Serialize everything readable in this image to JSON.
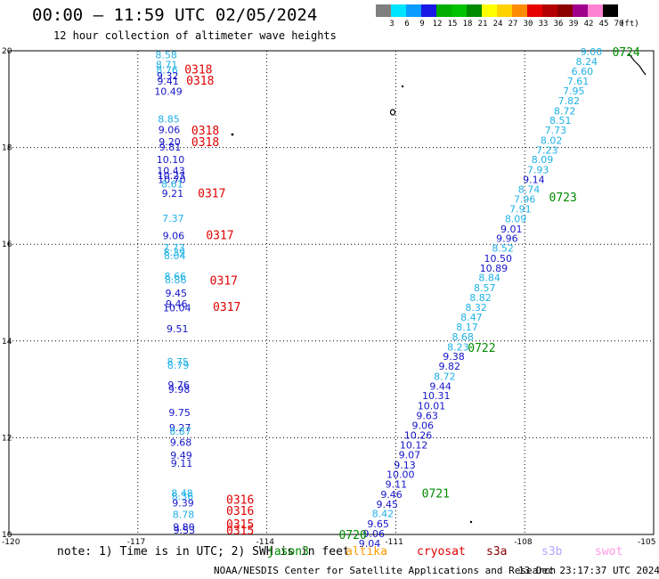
{
  "header": {
    "title": "00:00 – 11:59 UTC 02/05/2024",
    "subtitle": "12 hour collection of altimeter wave heights"
  },
  "legend": {
    "unit": "(ft)",
    "bins": [
      {
        "label": "3",
        "color": "#7f7f7f"
      },
      {
        "label": "6",
        "color": "#00e5ff"
      },
      {
        "label": "9",
        "color": "#0a9cff"
      },
      {
        "label": "12",
        "color": "#1919e6"
      },
      {
        "label": "15",
        "color": "#00ad00"
      },
      {
        "label": "18",
        "color": "#00c200"
      },
      {
        "label": "21",
        "color": "#008a00"
      },
      {
        "label": "24",
        "color": "#ffff00"
      },
      {
        "label": "27",
        "color": "#ffd200"
      },
      {
        "label": "30",
        "color": "#ff8c00"
      },
      {
        "label": "33",
        "color": "#e60000"
      },
      {
        "label": "36",
        "color": "#b40000"
      },
      {
        "label": "39",
        "color": "#8c0000"
      },
      {
        "label": "42",
        "color": "#a0008c"
      },
      {
        "label": "45",
        "color": "#ff82d2"
      },
      {
        "label": "70",
        "color": "#000000"
      }
    ]
  },
  "map": {
    "lon_range": [
      -120,
      -105
    ],
    "lat_range": [
      10,
      20
    ],
    "lon_labels": [
      "-120",
      "-117",
      "-114",
      "-111",
      "-108",
      "-105"
    ],
    "lat_labels": [
      "10",
      "12",
      "14",
      "16",
      "18",
      "20"
    ],
    "colors": {
      "cyan": "#1fb1e6",
      "blue": "#1414c8",
      "red": "#e00000",
      "green": "#008c00"
    },
    "tracks": [
      {
        "name": "0724-0720",
        "points": [
          {
            "lon": -106.45,
            "lat": 19.98,
            "v": "9.00",
            "c": "cyan"
          },
          {
            "lon": -106.56,
            "lat": 19.78,
            "v": "8.24",
            "c": "cyan"
          },
          {
            "lon": -106.66,
            "lat": 19.58,
            "v": "6.60",
            "c": "cyan"
          },
          {
            "lon": -106.76,
            "lat": 19.37,
            "v": "7.61",
            "c": "cyan"
          },
          {
            "lon": -106.86,
            "lat": 19.17,
            "v": "7.95",
            "c": "cyan"
          },
          {
            "lon": -106.97,
            "lat": 18.97,
            "v": "7.82",
            "c": "cyan"
          },
          {
            "lon": -107.07,
            "lat": 18.76,
            "v": "8.72",
            "c": "cyan"
          },
          {
            "lon": -107.17,
            "lat": 18.56,
            "v": "8.51",
            "c": "cyan"
          },
          {
            "lon": -107.28,
            "lat": 18.36,
            "v": "7.73",
            "c": "cyan"
          },
          {
            "lon": -107.38,
            "lat": 18.15,
            "v": "8.02",
            "c": "cyan"
          },
          {
            "lon": -107.48,
            "lat": 17.95,
            "v": "7.23",
            "c": "cyan"
          },
          {
            "lon": -107.59,
            "lat": 17.75,
            "v": "8.09",
            "c": "cyan"
          },
          {
            "lon": -107.69,
            "lat": 17.54,
            "v": "7.93",
            "c": "cyan"
          },
          {
            "lon": -107.79,
            "lat": 17.34,
            "v": "9.14",
            "c": "blue"
          },
          {
            "lon": -107.9,
            "lat": 17.14,
            "v": "8.74",
            "c": "cyan"
          },
          {
            "lon": -108.0,
            "lat": 16.93,
            "v": "7.96",
            "c": "cyan"
          },
          {
            "lon": -108.1,
            "lat": 16.73,
            "v": "7.91",
            "c": "cyan"
          },
          {
            "lon": -108.21,
            "lat": 16.53,
            "v": "8.09",
            "c": "cyan"
          },
          {
            "lon": -108.31,
            "lat": 16.32,
            "v": "9.01",
            "c": "blue"
          },
          {
            "lon": -108.41,
            "lat": 16.12,
            "v": "9.96",
            "c": "blue"
          },
          {
            "lon": -108.51,
            "lat": 15.92,
            "v": "8.52",
            "c": "cyan"
          },
          {
            "lon": -108.62,
            "lat": 15.71,
            "v": "10.50",
            "c": "blue"
          },
          {
            "lon": -108.72,
            "lat": 15.51,
            "v": "10.89",
            "c": "blue"
          },
          {
            "lon": -108.82,
            "lat": 15.31,
            "v": "8.84",
            "c": "cyan"
          },
          {
            "lon": -108.93,
            "lat": 15.1,
            "v": "8.57",
            "c": "cyan"
          },
          {
            "lon": -109.03,
            "lat": 14.9,
            "v": "8.82",
            "c": "cyan"
          },
          {
            "lon": -109.13,
            "lat": 14.7,
            "v": "8.32",
            "c": "cyan"
          },
          {
            "lon": -109.24,
            "lat": 14.49,
            "v": "8.47",
            "c": "cyan"
          },
          {
            "lon": -109.34,
            "lat": 14.29,
            "v": "8.17",
            "c": "cyan"
          },
          {
            "lon": -109.44,
            "lat": 14.09,
            "v": "8.68",
            "c": "cyan"
          },
          {
            "lon": -109.55,
            "lat": 13.88,
            "v": "8.23",
            "c": "cyan"
          },
          {
            "lon": -109.65,
            "lat": 13.68,
            "v": "9.38",
            "c": "blue"
          },
          {
            "lon": -109.75,
            "lat": 13.48,
            "v": "9.82",
            "c": "blue"
          },
          {
            "lon": -109.86,
            "lat": 13.27,
            "v": "8.72",
            "c": "cyan"
          },
          {
            "lon": -109.96,
            "lat": 13.07,
            "v": "9.44",
            "c": "blue"
          },
          {
            "lon": -110.06,
            "lat": 12.87,
            "v": "10.31",
            "c": "blue"
          },
          {
            "lon": -110.17,
            "lat": 12.66,
            "v": "10.01",
            "c": "blue"
          },
          {
            "lon": -110.27,
            "lat": 12.46,
            "v": "9.63",
            "c": "blue"
          },
          {
            "lon": -110.37,
            "lat": 12.26,
            "v": "9.06",
            "c": "blue"
          },
          {
            "lon": -110.48,
            "lat": 12.05,
            "v": "10.26",
            "c": "blue"
          },
          {
            "lon": -110.58,
            "lat": 11.85,
            "v": "10.12",
            "c": "blue"
          },
          {
            "lon": -110.68,
            "lat": 11.65,
            "v": "9.07",
            "c": "blue"
          },
          {
            "lon": -110.79,
            "lat": 11.44,
            "v": "9.13",
            "c": "blue"
          },
          {
            "lon": -110.89,
            "lat": 11.24,
            "v": "10.00",
            "c": "blue"
          },
          {
            "lon": -110.99,
            "lat": 11.04,
            "v": "9.11",
            "c": "blue"
          },
          {
            "lon": -111.1,
            "lat": 10.83,
            "v": "9.46",
            "c": "blue"
          },
          {
            "lon": -111.2,
            "lat": 10.63,
            "v": "9.45",
            "c": "blue"
          },
          {
            "lon": -111.3,
            "lat": 10.43,
            "v": "8.42",
            "c": "cyan"
          },
          {
            "lon": -111.41,
            "lat": 10.22,
            "v": "9.65",
            "c": "blue"
          },
          {
            "lon": -111.51,
            "lat": 10.02,
            "v": "9.06",
            "c": "blue"
          },
          {
            "lon": -111.61,
            "lat": 9.82,
            "v": "9.04",
            "c": "blue"
          }
        ]
      },
      {
        "name": "0318-0315",
        "points": [
          {
            "lon": -116.34,
            "lat": 19.92,
            "v": "8.58",
            "c": "cyan"
          },
          {
            "lon": -116.33,
            "lat": 19.71,
            "v": "8.71",
            "c": "cyan"
          },
          {
            "lon": -116.32,
            "lat": 19.6,
            "v": "8.76",
            "c": "cyan"
          },
          {
            "lon": -116.31,
            "lat": 19.48,
            "v": "9.32",
            "c": "blue"
          },
          {
            "lon": -116.3,
            "lat": 19.37,
            "v": "9.41",
            "c": "blue"
          },
          {
            "lon": -116.29,
            "lat": 19.16,
            "v": "10.49",
            "c": "blue"
          },
          {
            "lon": -116.28,
            "lat": 18.59,
            "v": "8.85",
            "c": "cyan"
          },
          {
            "lon": -116.27,
            "lat": 18.37,
            "v": "9.06",
            "c": "blue"
          },
          {
            "lon": -116.26,
            "lat": 18.12,
            "v": "9.20",
            "c": "blue"
          },
          {
            "lon": -116.25,
            "lat": 18.01,
            "v": "9.81",
            "c": "blue"
          },
          {
            "lon": -116.24,
            "lat": 17.75,
            "v": "10.10",
            "c": "blue"
          },
          {
            "lon": -116.23,
            "lat": 17.52,
            "v": "10.43",
            "c": "blue"
          },
          {
            "lon": -116.22,
            "lat": 17.42,
            "v": "10.23",
            "c": "blue"
          },
          {
            "lon": -116.21,
            "lat": 17.34,
            "v": "10.70",
            "c": "blue"
          },
          {
            "lon": -116.2,
            "lat": 17.25,
            "v": "8.61",
            "c": "cyan"
          },
          {
            "lon": -116.19,
            "lat": 17.05,
            "v": "9.21",
            "c": "blue"
          },
          {
            "lon": -116.18,
            "lat": 16.54,
            "v": "7.37",
            "c": "cyan"
          },
          {
            "lon": -116.17,
            "lat": 16.18,
            "v": "9.06",
            "c": "blue"
          },
          {
            "lon": -116.16,
            "lat": 15.93,
            "v": "7.73",
            "c": "cyan"
          },
          {
            "lon": -116.15,
            "lat": 15.84,
            "v": "8.39",
            "c": "cyan"
          },
          {
            "lon": -116.14,
            "lat": 15.76,
            "v": "8.04",
            "c": "cyan"
          },
          {
            "lon": -116.13,
            "lat": 15.34,
            "v": "8.66",
            "c": "cyan"
          },
          {
            "lon": -116.12,
            "lat": 15.27,
            "v": "8.86",
            "c": "cyan"
          },
          {
            "lon": -116.11,
            "lat": 14.99,
            "v": "9.45",
            "c": "blue"
          },
          {
            "lon": -116.1,
            "lat": 14.77,
            "v": "9.46",
            "c": "blue"
          },
          {
            "lon": -116.09,
            "lat": 14.69,
            "v": "10.04",
            "c": "blue"
          },
          {
            "lon": -116.08,
            "lat": 14.25,
            "v": "9.51",
            "c": "blue"
          },
          {
            "lon": -116.07,
            "lat": 13.57,
            "v": "8.75",
            "c": "cyan"
          },
          {
            "lon": -116.06,
            "lat": 13.5,
            "v": "8.79",
            "c": "cyan"
          },
          {
            "lon": -116.05,
            "lat": 13.09,
            "v": "9.76",
            "c": "blue"
          },
          {
            "lon": -116.04,
            "lat": 13.0,
            "v": "9.98",
            "c": "blue"
          },
          {
            "lon": -116.03,
            "lat": 12.52,
            "v": "9.75",
            "c": "blue"
          },
          {
            "lon": -116.02,
            "lat": 12.21,
            "v": "9.27",
            "c": "blue"
          },
          {
            "lon": -116.01,
            "lat": 12.14,
            "v": "8.87",
            "c": "cyan"
          },
          {
            "lon": -116.0,
            "lat": 11.91,
            "v": "9.68",
            "c": "blue"
          },
          {
            "lon": -115.99,
            "lat": 11.64,
            "v": "9.49",
            "c": "blue"
          },
          {
            "lon": -115.98,
            "lat": 11.47,
            "v": "9.11",
            "c": "blue"
          },
          {
            "lon": -115.97,
            "lat": 10.86,
            "v": "8.48",
            "c": "cyan"
          },
          {
            "lon": -115.96,
            "lat": 10.79,
            "v": "8.36",
            "c": "cyan"
          },
          {
            "lon": -115.95,
            "lat": 10.65,
            "v": "9.39",
            "c": "blue"
          },
          {
            "lon": -115.94,
            "lat": 10.41,
            "v": "8.78",
            "c": "cyan"
          },
          {
            "lon": -115.93,
            "lat": 10.16,
            "v": "9.80",
            "c": "blue"
          },
          {
            "lon": -115.92,
            "lat": 10.09,
            "v": "9.53",
            "c": "blue"
          }
        ]
      }
    ],
    "pass_labels": [
      {
        "text": "0724",
        "lon": -105.64,
        "lat": 19.98,
        "c": "green"
      },
      {
        "text": "0723",
        "lon": -107.11,
        "lat": 16.98,
        "c": "green"
      },
      {
        "text": "0722",
        "lon": -109.0,
        "lat": 13.87,
        "c": "green"
      },
      {
        "text": "0721",
        "lon": -110.07,
        "lat": 10.86,
        "c": "green"
      },
      {
        "text": "0720",
        "lon": -112.0,
        "lat": 10.0,
        "c": "green"
      },
      {
        "text": "0318",
        "lon": -115.59,
        "lat": 19.62,
        "c": "red"
      },
      {
        "text": "0318",
        "lon": -115.55,
        "lat": 19.39,
        "c": "red"
      },
      {
        "text": "0318",
        "lon": -115.43,
        "lat": 18.36,
        "c": "red"
      },
      {
        "text": "0318",
        "lon": -115.43,
        "lat": 18.12,
        "c": "red"
      },
      {
        "text": "0317",
        "lon": -115.28,
        "lat": 17.06,
        "c": "red"
      },
      {
        "text": "0317",
        "lon": -115.09,
        "lat": 16.2,
        "c": "red"
      },
      {
        "text": "0317",
        "lon": -115.0,
        "lat": 15.26,
        "c": "red"
      },
      {
        "text": "0317",
        "lon": -114.93,
        "lat": 14.71,
        "c": "red"
      },
      {
        "text": "0316",
        "lon": -114.62,
        "lat": 10.73,
        "c": "red"
      },
      {
        "text": "0316",
        "lon": -114.62,
        "lat": 10.5,
        "c": "red"
      },
      {
        "text": "0315",
        "lon": -114.62,
        "lat": 10.22,
        "c": "red"
      },
      {
        "text": "0315",
        "lon": -114.62,
        "lat": 10.09,
        "c": "red"
      }
    ]
  },
  "footer": {
    "note": "note: 1) Time is in UTC; 2) SWH is in feet",
    "satellites": [
      {
        "name": "jason3",
        "color": "#008c00"
      },
      {
        "name": "altika",
        "color": "#ff9900"
      },
      {
        "name": "cryosat",
        "color": "#e00000"
      },
      {
        "name": "s3a",
        "color": "#8b0000"
      },
      {
        "name": "s3b",
        "color": "#b3a6ff"
      },
      {
        "name": "swot",
        "color": "#ff99e6"
      }
    ],
    "credit": "NOAA/NESDIS Center for Satellite Applications and Research",
    "timestamp": "13 Dec 23:17:37 UTC 2024"
  }
}
